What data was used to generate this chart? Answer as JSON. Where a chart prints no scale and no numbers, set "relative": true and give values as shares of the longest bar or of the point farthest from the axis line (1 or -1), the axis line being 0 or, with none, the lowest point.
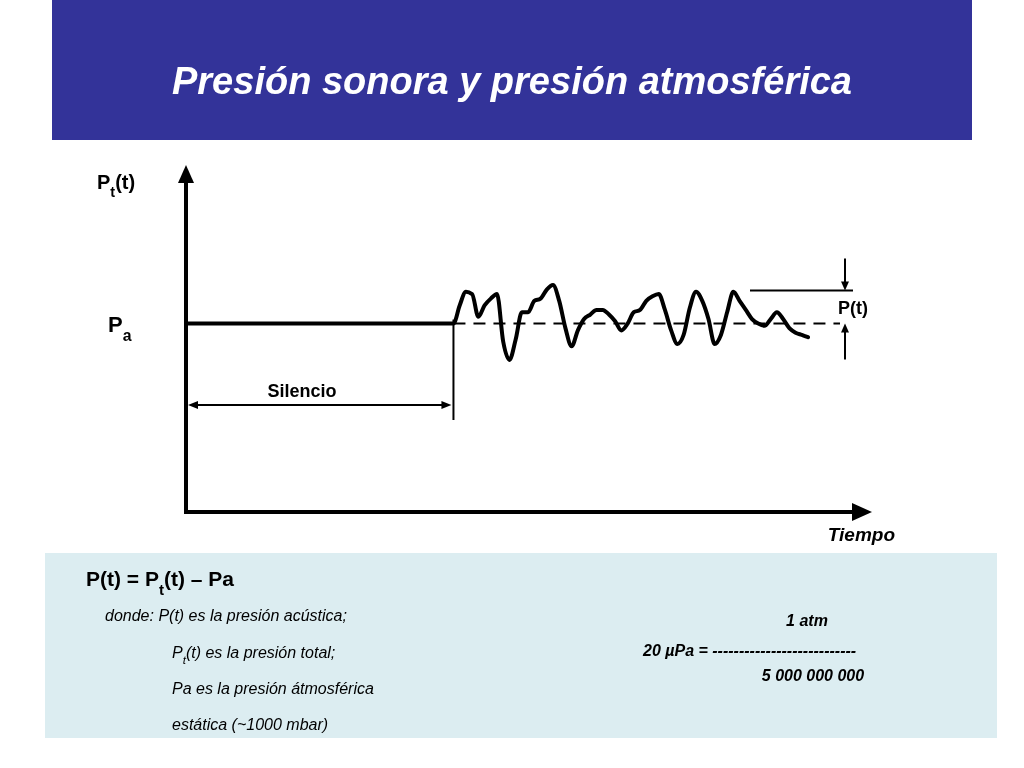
{
  "chart_data": {
    "type": "line",
    "title": "Presión sonora y presión atmosférica",
    "xlabel": "Tiempo",
    "ylabel": "P$_{t}$(t)",
    "relative": true,
    "color": "#000000",
    "categories": [
      null,
      null,
      null,
      null,
      null,
      null,
      null,
      null,
      null,
      null,
      null,
      null,
      null,
      null,
      null,
      null,
      null,
      null,
      null,
      null,
      null,
      null,
      null,
      null,
      null,
      null,
      null,
      null,
      null,
      null,
      null,
      null,
      null,
      null,
      null,
      null,
      null,
      null,
      null,
      null,
      null,
      null,
      null,
      null,
      null,
      null,
      null,
      null,
      null,
      null,
      null,
      null,
      null,
      null,
      null,
      null,
      null,
      null,
      null,
      null,
      null,
      null,
      null,
      null,
      null,
      null,
      null,
      null,
      null,
      null,
      null,
      null,
      null,
      null,
      null,
      null,
      null,
      null,
      null,
      null,
      null,
      null,
      null,
      null,
      null,
      null,
      null,
      null,
      null,
      null,
      null,
      null,
      null,
      null,
      null,
      null,
      null,
      null,
      null,
      null,
      null
    ],
    "values": [
      0.83,
      0.83,
      0.83,
      0.83,
      0.83,
      0.83,
      0.83,
      0.83,
      0.83,
      0.83,
      0.83,
      0.83,
      0.83,
      0.83,
      0.83,
      0.83,
      0.83,
      0.83,
      0.83,
      0.83,
      0.83,
      0.83,
      0.83,
      0.83,
      0.83,
      0.83,
      0.83,
      0.83,
      0.83,
      0.83,
      0.83,
      0.83,
      0.83,
      0.83,
      0.83,
      0.83,
      0.83,
      0.83,
      0.83,
      0.83,
      0.83,
      0.83,
      0.83,
      0.83,
      0.91,
      0.97,
      0.96,
      0.86,
      0.91,
      0.94,
      0.96,
      0.75,
      0.67,
      0.76,
      0.88,
      0.88,
      0.93,
      0.94,
      0.98,
      1,
      0.93,
      0.81,
      0.73,
      0.8,
      0.85,
      0.87,
      0.89,
      0.89,
      0.87,
      0.84,
      0.8,
      0.83,
      0.88,
      0.89,
      0.93,
      0.95,
      0.96,
      0.89,
      0.8,
      0.74,
      0.78,
      0.9,
      0.97,
      0.93,
      0.85,
      0.74,
      0.78,
      0.88,
      0.97,
      0.93,
      0.89,
      0.85,
      0.83,
      0.82,
      0.85,
      0.88,
      0.85,
      0.81,
      0.79,
      0.78,
      0.77
    ],
    "ref_lines": [
      {
        "axis": "y",
        "value": 0.83,
        "label": "P$_{a}$",
        "line_style": "dashed"
      }
    ],
    "annotations": [
      "Silencio",
      "P(t)",
      "P(t) = P$_{t}$(t) – Pa",
      "donde: P(t) es la presión acústica;",
      "P$_{t}$(t) es la presión total;",
      "Pa es la presión átmosférica",
      "estática (~1000 mbar)",
      "1 atm",
      "20 µPa = ---------------------------",
      "5 000 000 000"
    ]
  }
}
